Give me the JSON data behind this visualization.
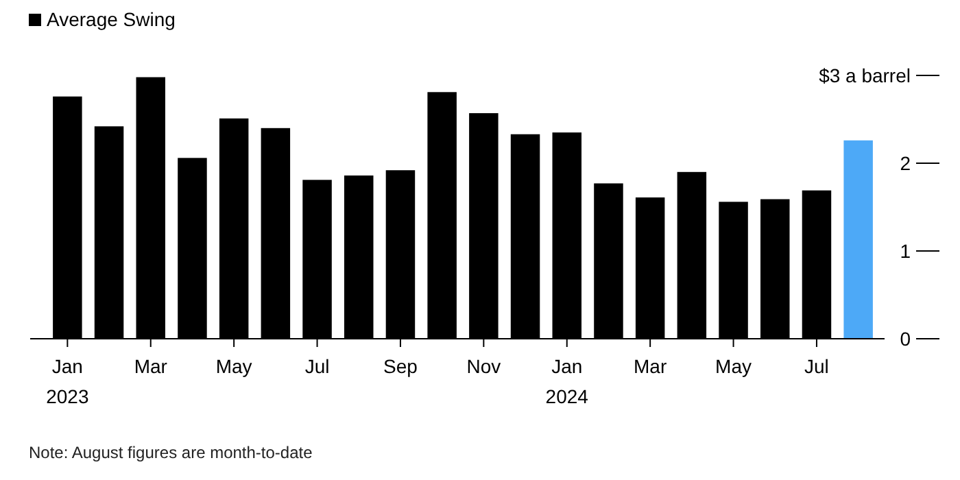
{
  "chart_data": {
    "type": "bar",
    "categories": [
      "Jan\n2023",
      null,
      "Mar",
      null,
      "May",
      null,
      "Jul",
      null,
      "Sep",
      null,
      "Nov",
      null,
      "Jan\n2024",
      null,
      "Mar",
      null,
      "May",
      null,
      "Jul",
      null
    ],
    "series": [
      {
        "name": "Average Swing",
        "color": "#000000",
        "colors": [
          "#000000",
          "#000000",
          "#000000",
          "#000000",
          "#000000",
          "#000000",
          "#000000",
          "#000000",
          "#000000",
          "#000000",
          "#000000",
          "#000000",
          "#000000",
          "#000000",
          "#000000",
          "#000000",
          "#000000",
          "#000000",
          "#000000",
          "#4da9f7"
        ],
        "values": [
          2.76,
          2.42,
          2.98,
          2.06,
          2.51,
          2.4,
          1.81,
          1.86,
          1.92,
          2.81,
          2.57,
          2.33,
          2.35,
          1.77,
          1.61,
          1.9,
          1.56,
          1.59,
          1.69,
          2.26
        ]
      }
    ],
    "ylim": [
      0,
      3
    ],
    "yticks": [
      0,
      1,
      2,
      {
        "value": 3,
        "label": "$3 a barrel"
      }
    ],
    "legend": "top left",
    "grid": false,
    "annotations": [
      "Note: August figures are month-to-date"
    ]
  }
}
